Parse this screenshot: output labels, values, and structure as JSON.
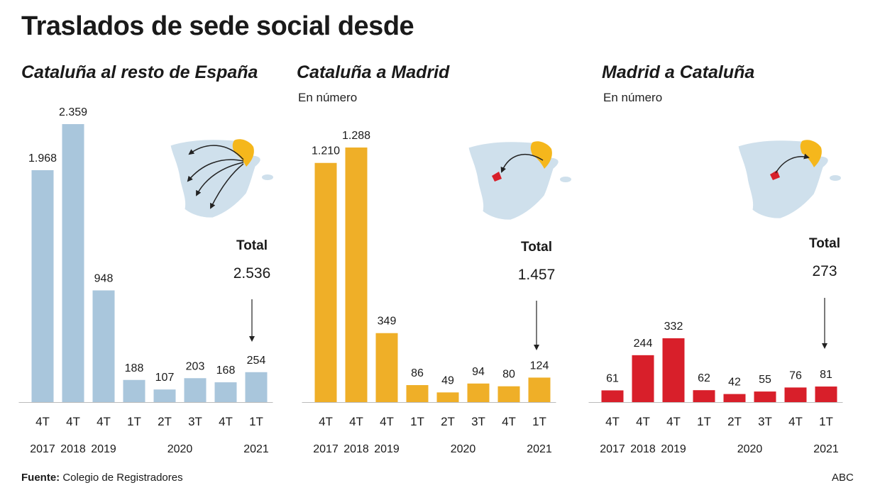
{
  "title": "Traslados de sede social desde",
  "source_label": "Fuente:",
  "source_text": "Colegio de Registradores",
  "credit": "ABC",
  "colors": {
    "catalonia_to_spain": "#a9c6dc",
    "catalonia_to_madrid": "#efaf28",
    "madrid_to_catalonia": "#d81f2a",
    "map_base": "#cfe0ec",
    "map_catalonia": "#f5b71c",
    "map_madrid": "#d81f2a"
  },
  "chart_data": [
    {
      "type": "bar",
      "title": "Cataluña al resto de España",
      "subtitle": "",
      "categories": [
        "4T",
        "4T",
        "4T",
        "1T",
        "2T",
        "3T",
        "4T",
        "1T"
      ],
      "years": [
        "2017",
        "2018",
        "2019",
        "",
        "2020",
        "",
        "",
        "2021"
      ],
      "values": [
        1968,
        2359,
        948,
        188,
        107,
        203,
        168,
        254
      ],
      "labels": [
        "1.968",
        "2.359",
        "948",
        "188",
        "107",
        "203",
        "168",
        "254"
      ],
      "total_label": "Total",
      "total_value": "2.536",
      "color": "#a9c6dc",
      "map_icon": "map-spain-arrows-catalonia-to-rest-icon"
    },
    {
      "type": "bar",
      "title": "Cataluña a Madrid",
      "subtitle": "En número",
      "categories": [
        "4T",
        "4T",
        "4T",
        "1T",
        "2T",
        "3T",
        "4T",
        "1T"
      ],
      "years": [
        "2017",
        "2018",
        "2019",
        "",
        "2020",
        "",
        "",
        "2021"
      ],
      "values": [
        1210,
        1288,
        349,
        86,
        49,
        94,
        80,
        124
      ],
      "labels": [
        "1.210",
        "1.288",
        "349",
        "86",
        "49",
        "94",
        "80",
        "124"
      ],
      "total_label": "Total",
      "total_value": "1.457",
      "color": "#efaf28",
      "map_icon": "map-spain-arrow-catalonia-to-madrid-icon"
    },
    {
      "type": "bar",
      "title": "Madrid a Cataluña",
      "subtitle": "En número",
      "categories": [
        "4T",
        "4T",
        "4T",
        "1T",
        "2T",
        "3T",
        "4T",
        "1T"
      ],
      "years": [
        "2017",
        "2018",
        "2019",
        "",
        "2020",
        "",
        "",
        "2021"
      ],
      "values": [
        61,
        244,
        332,
        62,
        42,
        55,
        76,
        81
      ],
      "labels": [
        "61",
        "244",
        "332",
        "62",
        "42",
        "55",
        "76",
        "81"
      ],
      "total_label": "Total",
      "total_value": "273",
      "color": "#d81f2a",
      "map_icon": "map-spain-arrow-madrid-to-catalonia-icon"
    }
  ]
}
